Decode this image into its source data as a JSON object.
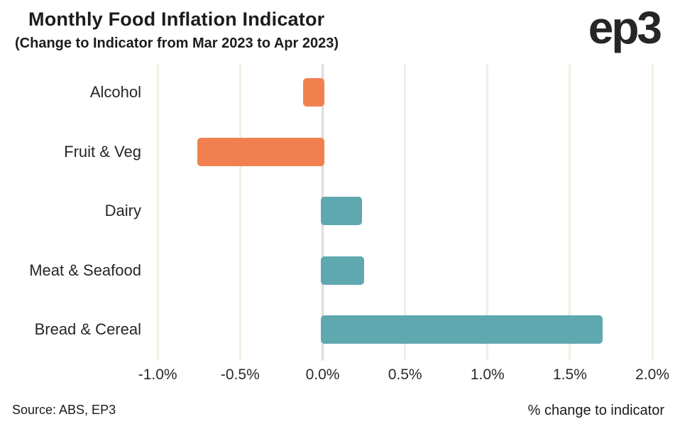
{
  "header": {
    "title": "Monthly Food Inflation Indicator",
    "subtitle": "(Change to Indicator from Mar 2023 to Apr 2023)",
    "logo": "ep3"
  },
  "chart_data": {
    "type": "bar",
    "orientation": "horizontal",
    "title": "Monthly Food Inflation Indicator",
    "subtitle": "(Change to Indicator from Mar 2023 to Apr 2023)",
    "categories": [
      "Alcohol",
      "Fruit & Veg",
      "Dairy",
      "Meat & Seafood",
      "Bread & Cereal"
    ],
    "values": [
      -0.12,
      -0.76,
      0.24,
      0.25,
      1.7
    ],
    "xlabel": "% change to indicator",
    "ylabel": "",
    "xlim": [
      -1.0,
      2.0
    ],
    "xticks": [
      -1.0,
      -0.5,
      0.0,
      0.5,
      1.0,
      1.5,
      2.0
    ],
    "xtick_labels": [
      "-1.0%",
      "-0.5%",
      "0.0%",
      "0.5%",
      "1.0%",
      "1.5%",
      "2.0%"
    ],
    "grid": true,
    "legend": false,
    "colors": {
      "positive_bar": "#5FA8B0",
      "negative_bar": "#F0814F",
      "gridline": "#F0EFE2",
      "zero_line": "#DCDCDC",
      "text": "#1f1f1f"
    }
  },
  "footer": {
    "source": "Source: ABS, EP3",
    "axis_label": "% change to indicator"
  }
}
